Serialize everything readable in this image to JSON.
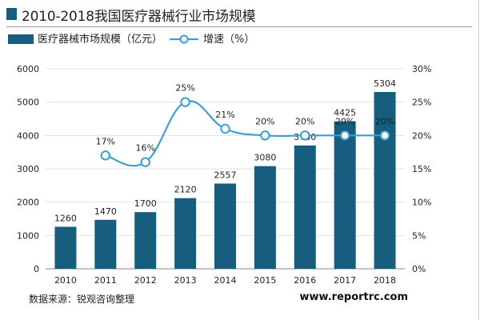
{
  "title": "2010-2018我国医疗器械行业市场规模",
  "source": "数据来源：锐观咨询整理",
  "site": "www.reportrc.com",
  "colors": {
    "bar": "#175e7e",
    "line": "#3a9fd1",
    "marker_fill": "#ffffff",
    "grid": "#e3e3e3",
    "axis": "#555555"
  },
  "chart_data": {
    "type": "bar+line",
    "categories": [
      "2010",
      "2011",
      "2012",
      "2013",
      "2014",
      "2015",
      "2016",
      "2017",
      "2018"
    ],
    "series": [
      {
        "name": "医疗器械市场规模（亿元）",
        "type": "bar",
        "axis": "left",
        "values": [
          1260,
          1470,
          1700,
          2120,
          2557,
          3080,
          3700,
          4425,
          5304
        ],
        "labels": [
          "1260",
          "1470",
          "1700",
          "2120",
          "2557",
          "3080",
          "3700",
          "4425",
          "5304"
        ]
      },
      {
        "name": "增速（%）",
        "type": "line",
        "axis": "right",
        "smooth": true,
        "values": [
          null,
          17,
          16,
          25,
          21,
          20,
          20,
          20,
          20
        ],
        "labels": [
          "",
          "17%",
          "16%",
          "25%",
          "21%",
          "20%",
          "20%",
          "20%",
          "20%"
        ]
      }
    ],
    "y_left": {
      "ylim": [
        0,
        6000
      ],
      "ticks": [
        "0",
        "1000",
        "2000",
        "3000",
        "4000",
        "5000",
        "6000"
      ]
    },
    "y_right": {
      "ylim": [
        0,
        30
      ],
      "ticks": [
        "0%",
        "5%",
        "10%",
        "15%",
        "20%",
        "25%",
        "30%"
      ]
    },
    "grid": true,
    "legend": "top-left"
  }
}
